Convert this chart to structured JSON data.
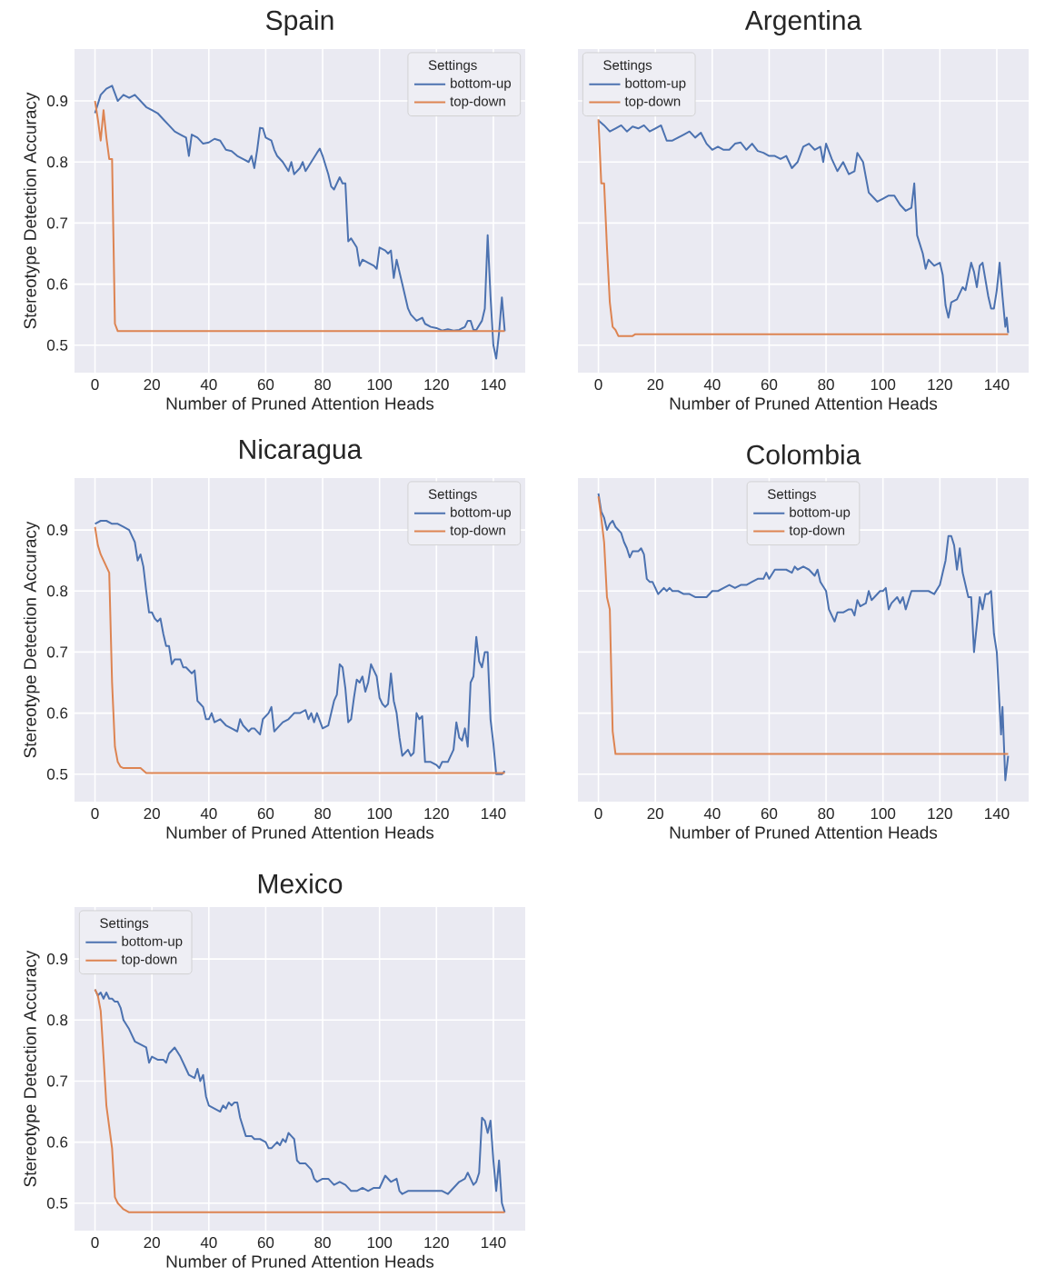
{
  "chart_data": [
    {
      "type": "line",
      "title": "Spain",
      "xlabel": "Number of Pruned Attention Heads",
      "ylabel": "Stereotype Detection Accuracy",
      "legend_title": "Settings",
      "legend": "top right",
      "grid": true,
      "xlim": [
        -7.2,
        151.2
      ],
      "ylim": [
        0.455,
        0.985
      ],
      "xticks": [
        0,
        20,
        40,
        60,
        80,
        100,
        120,
        140
      ],
      "yticks": [
        0.5,
        0.6,
        0.7,
        0.8,
        0.9
      ],
      "series": [
        {
          "name": "bottom-up",
          "color": "#4c72b0",
          "x": [
            0,
            2,
            4,
            6,
            8,
            10,
            12,
            14,
            16,
            18,
            20,
            22,
            24,
            26,
            28,
            30,
            32,
            33,
            34,
            36,
            38,
            40,
            42,
            44,
            46,
            48,
            50,
            52,
            54,
            55,
            56,
            57,
            58,
            59,
            60,
            62,
            63,
            64,
            66,
            68,
            69,
            70,
            72,
            73,
            74,
            76,
            78,
            79,
            80,
            82,
            83,
            84,
            86,
            87,
            88,
            89,
            90,
            92,
            93,
            94,
            96,
            98,
            99,
            100,
            102,
            103,
            104,
            105,
            106,
            107,
            108,
            110,
            111,
            113,
            115,
            116,
            118,
            120,
            122,
            124,
            126,
            128,
            130,
            131,
            132,
            133,
            134,
            136,
            137,
            138,
            139,
            140,
            141,
            142,
            143,
            144
          ],
          "values": [
            0.88,
            0.91,
            0.92,
            0.925,
            0.9,
            0.91,
            0.905,
            0.91,
            0.9,
            0.89,
            0.885,
            0.88,
            0.87,
            0.86,
            0.85,
            0.845,
            0.84,
            0.81,
            0.845,
            0.84,
            0.83,
            0.832,
            0.838,
            0.835,
            0.82,
            0.818,
            0.81,
            0.805,
            0.8,
            0.81,
            0.79,
            0.82,
            0.856,
            0.855,
            0.84,
            0.835,
            0.82,
            0.81,
            0.8,
            0.785,
            0.8,
            0.78,
            0.79,
            0.8,
            0.785,
            0.8,
            0.815,
            0.822,
            0.81,
            0.78,
            0.76,
            0.755,
            0.775,
            0.765,
            0.765,
            0.67,
            0.675,
            0.66,
            0.63,
            0.64,
            0.635,
            0.63,
            0.625,
            0.66,
            0.655,
            0.65,
            0.655,
            0.61,
            0.64,
            0.62,
            0.6,
            0.56,
            0.55,
            0.54,
            0.545,
            0.535,
            0.53,
            0.528,
            0.524,
            0.526,
            0.524,
            0.525,
            0.53,
            0.54,
            0.54,
            0.525,
            0.525,
            0.54,
            0.56,
            0.68,
            0.58,
            0.5,
            0.478,
            0.52,
            0.578,
            0.523
          ]
        },
        {
          "name": "top-down",
          "color": "#dd8452",
          "x": [
            0,
            1,
            2,
            3,
            4,
            5,
            6,
            7,
            8,
            144
          ],
          "values": [
            0.9,
            0.87,
            0.835,
            0.885,
            0.84,
            0.805,
            0.805,
            0.535,
            0.523,
            0.523
          ]
        }
      ]
    },
    {
      "type": "line",
      "title": "Argentina",
      "xlabel": "Number of Pruned Attention Heads",
      "legend_title": "Settings",
      "legend": "top left",
      "grid": true,
      "tick_labels": "x",
      "xlim": [
        -7.2,
        151.2
      ],
      "ylim": [
        0.455,
        0.985
      ],
      "xticks": [
        0,
        20,
        40,
        60,
        80,
        100,
        120,
        140
      ],
      "yticks": [
        0.5,
        0.6,
        0.7,
        0.8,
        0.9
      ],
      "series": [
        {
          "name": "bottom-up",
          "color": "#4c72b0",
          "x": [
            0,
            2,
            4,
            6,
            8,
            10,
            12,
            14,
            16,
            18,
            20,
            22,
            24,
            26,
            28,
            30,
            32,
            34,
            36,
            38,
            40,
            42,
            44,
            46,
            48,
            50,
            52,
            54,
            56,
            58,
            60,
            62,
            64,
            66,
            68,
            70,
            72,
            74,
            76,
            78,
            79,
            80,
            82,
            84,
            86,
            88,
            90,
            91,
            93,
            95,
            97,
            98,
            100,
            102,
            104,
            106,
            108,
            110,
            111,
            112,
            114,
            115,
            116,
            118,
            120,
            121,
            122,
            123,
            124,
            126,
            128,
            129,
            131,
            132,
            133,
            134,
            135,
            137,
            138,
            139,
            140,
            141,
            142,
            143,
            143.5,
            144
          ],
          "values": [
            0.868,
            0.86,
            0.85,
            0.855,
            0.86,
            0.85,
            0.858,
            0.855,
            0.86,
            0.85,
            0.855,
            0.86,
            0.835,
            0.835,
            0.84,
            0.845,
            0.85,
            0.84,
            0.848,
            0.83,
            0.82,
            0.825,
            0.82,
            0.82,
            0.83,
            0.832,
            0.82,
            0.83,
            0.818,
            0.815,
            0.81,
            0.81,
            0.805,
            0.81,
            0.79,
            0.8,
            0.825,
            0.83,
            0.82,
            0.825,
            0.8,
            0.83,
            0.805,
            0.785,
            0.8,
            0.78,
            0.785,
            0.815,
            0.8,
            0.75,
            0.74,
            0.735,
            0.74,
            0.745,
            0.745,
            0.73,
            0.72,
            0.725,
            0.765,
            0.68,
            0.65,
            0.625,
            0.64,
            0.63,
            0.635,
            0.615,
            0.565,
            0.545,
            0.57,
            0.575,
            0.595,
            0.59,
            0.635,
            0.62,
            0.595,
            0.63,
            0.635,
            0.58,
            0.56,
            0.56,
            0.59,
            0.635,
            0.58,
            0.53,
            0.545,
            0.52
          ]
        },
        {
          "name": "top-down",
          "color": "#dd8452",
          "x": [
            0,
            1,
            2,
            3,
            4,
            5,
            6,
            7,
            12,
            13,
            144
          ],
          "values": [
            0.87,
            0.765,
            0.765,
            0.66,
            0.57,
            0.53,
            0.525,
            0.515,
            0.515,
            0.518,
            0.518
          ]
        }
      ]
    },
    {
      "type": "line",
      "title": "Nicaragua",
      "xlabel": "Number of Pruned Attention Heads",
      "ylabel": "Stereotype Detection Accuracy",
      "legend_title": "Settings",
      "legend": "top right",
      "grid": true,
      "xlim": [
        -7.2,
        151.2
      ],
      "ylim": [
        0.455,
        0.985
      ],
      "xticks": [
        0,
        20,
        40,
        60,
        80,
        100,
        120,
        140
      ],
      "yticks": [
        0.5,
        0.6,
        0.7,
        0.8,
        0.9
      ],
      "series": [
        {
          "name": "bottom-up",
          "color": "#4c72b0",
          "x": [
            0,
            2,
            4,
            6,
            8,
            10,
            12,
            14,
            15,
            16,
            17,
            18,
            19,
            20,
            21,
            22,
            23,
            24,
            25,
            26,
            27,
            28,
            30,
            31,
            32,
            34,
            35,
            36,
            37,
            38,
            39,
            40,
            41,
            42,
            44,
            46,
            48,
            50,
            51,
            52,
            54,
            55,
            56,
            58,
            59,
            61,
            62,
            63,
            64,
            66,
            68,
            70,
            72,
            74,
            75,
            76,
            77,
            78,
            80,
            82,
            84,
            85,
            86,
            87,
            88,
            89,
            90,
            91,
            92,
            93,
            94,
            95,
            96,
            97,
            98,
            99,
            100,
            101,
            102,
            103,
            104,
            105,
            106,
            107,
            108,
            109,
            110,
            111,
            112,
            113,
            114,
            115,
            116,
            118,
            120,
            121,
            122,
            124,
            126,
            127,
            128,
            129,
            130,
            131,
            132,
            133,
            134,
            135,
            136,
            137,
            138,
            139,
            140,
            141,
            142,
            143,
            144
          ],
          "values": [
            0.91,
            0.915,
            0.915,
            0.91,
            0.91,
            0.905,
            0.9,
            0.88,
            0.85,
            0.86,
            0.84,
            0.8,
            0.765,
            0.765,
            0.755,
            0.75,
            0.755,
            0.73,
            0.71,
            0.71,
            0.68,
            0.688,
            0.688,
            0.675,
            0.675,
            0.665,
            0.67,
            0.62,
            0.615,
            0.61,
            0.59,
            0.59,
            0.6,
            0.585,
            0.59,
            0.58,
            0.575,
            0.57,
            0.59,
            0.58,
            0.57,
            0.575,
            0.575,
            0.565,
            0.59,
            0.6,
            0.61,
            0.57,
            0.575,
            0.585,
            0.59,
            0.6,
            0.6,
            0.605,
            0.59,
            0.6,
            0.585,
            0.6,
            0.575,
            0.58,
            0.62,
            0.63,
            0.68,
            0.675,
            0.64,
            0.585,
            0.59,
            0.625,
            0.655,
            0.65,
            0.66,
            0.635,
            0.65,
            0.68,
            0.67,
            0.66,
            0.625,
            0.615,
            0.61,
            0.615,
            0.665,
            0.62,
            0.6,
            0.56,
            0.53,
            0.535,
            0.54,
            0.53,
            0.535,
            0.6,
            0.59,
            0.595,
            0.52,
            0.52,
            0.515,
            0.51,
            0.52,
            0.52,
            0.54,
            0.585,
            0.56,
            0.555,
            0.575,
            0.545,
            0.65,
            0.66,
            0.725,
            0.685,
            0.675,
            0.7,
            0.7,
            0.59,
            0.55,
            0.5,
            0.5,
            0.5,
            0.505
          ]
        },
        {
          "name": "top-down",
          "color": "#dd8452",
          "x": [
            0,
            1,
            2,
            3,
            4,
            5,
            6,
            7,
            8,
            9,
            10,
            16,
            18,
            144
          ],
          "values": [
            0.905,
            0.875,
            0.86,
            0.85,
            0.84,
            0.83,
            0.65,
            0.545,
            0.52,
            0.512,
            0.51,
            0.51,
            0.502,
            0.502
          ]
        }
      ]
    },
    {
      "type": "line",
      "title": "Colombia",
      "xlabel": "Number of Pruned Attention Heads",
      "legend_title": "Settings",
      "legend": "top",
      "grid": true,
      "tick_labels": "x",
      "xlim": [
        -7.2,
        151.2
      ],
      "ylim": [
        0.455,
        0.985
      ],
      "xticks": [
        0,
        20,
        40,
        60,
        80,
        100,
        120,
        140
      ],
      "yticks": [
        0.5,
        0.6,
        0.7,
        0.8,
        0.9
      ],
      "series": [
        {
          "name": "bottom-up",
          "color": "#4c72b0",
          "x": [
            0,
            1,
            2,
            3,
            4,
            5,
            6,
            8,
            9,
            10,
            11,
            12,
            14,
            15,
            16,
            17,
            18,
            19,
            20,
            21,
            22,
            23,
            24,
            25,
            26,
            28,
            30,
            32,
            34,
            36,
            38,
            40,
            42,
            44,
            46,
            48,
            50,
            52,
            54,
            56,
            58,
            59,
            60,
            62,
            64,
            66,
            68,
            69,
            70,
            72,
            74,
            76,
            77,
            78,
            80,
            81,
            82,
            83,
            84,
            86,
            88,
            89,
            90,
            91,
            92,
            94,
            95,
            96,
            97,
            99,
            100,
            101,
            102,
            103,
            105,
            106,
            107,
            108,
            110,
            112,
            114,
            116,
            118,
            120,
            121,
            122,
            123,
            124,
            125,
            126,
            127,
            128,
            129,
            130,
            131,
            132,
            133,
            134,
            135,
            136,
            137,
            138,
            139,
            140,
            141,
            141.5,
            142,
            143,
            144
          ],
          "values": [
            0.96,
            0.93,
            0.92,
            0.9,
            0.91,
            0.915,
            0.905,
            0.895,
            0.88,
            0.87,
            0.855,
            0.865,
            0.865,
            0.87,
            0.86,
            0.82,
            0.815,
            0.815,
            0.805,
            0.795,
            0.8,
            0.805,
            0.8,
            0.805,
            0.8,
            0.8,
            0.795,
            0.795,
            0.79,
            0.79,
            0.79,
            0.8,
            0.8,
            0.805,
            0.81,
            0.805,
            0.81,
            0.81,
            0.815,
            0.82,
            0.82,
            0.83,
            0.82,
            0.835,
            0.835,
            0.835,
            0.83,
            0.84,
            0.835,
            0.84,
            0.835,
            0.825,
            0.835,
            0.815,
            0.8,
            0.77,
            0.76,
            0.75,
            0.765,
            0.765,
            0.77,
            0.77,
            0.76,
            0.785,
            0.775,
            0.78,
            0.8,
            0.785,
            0.79,
            0.8,
            0.8,
            0.805,
            0.77,
            0.78,
            0.79,
            0.78,
            0.79,
            0.77,
            0.8,
            0.8,
            0.8,
            0.8,
            0.795,
            0.81,
            0.83,
            0.85,
            0.89,
            0.89,
            0.875,
            0.835,
            0.87,
            0.83,
            0.81,
            0.79,
            0.79,
            0.7,
            0.745,
            0.79,
            0.77,
            0.795,
            0.795,
            0.8,
            0.73,
            0.7,
            0.61,
            0.565,
            0.61,
            0.49,
            0.53
          ]
        },
        {
          "name": "top-down",
          "color": "#dd8452",
          "x": [
            0,
            1,
            2,
            3,
            4,
            5,
            6,
            144
          ],
          "values": [
            0.955,
            0.92,
            0.88,
            0.79,
            0.77,
            0.57,
            0.533,
            0.533
          ]
        }
      ]
    },
    {
      "type": "line",
      "title": "Mexico",
      "xlabel": "Number of Pruned Attention Heads",
      "ylabel": "Stereotype Detection Accuracy",
      "legend_title": "Settings",
      "legend": "top left",
      "grid": true,
      "xlim": [
        -7.2,
        151.2
      ],
      "ylim": [
        0.455,
        0.985
      ],
      "xticks": [
        0,
        20,
        40,
        60,
        80,
        100,
        120,
        140
      ],
      "yticks": [
        0.5,
        0.6,
        0.7,
        0.8,
        0.9
      ],
      "series": [
        {
          "name": "bottom-up",
          "color": "#4c72b0",
          "x": [
            0,
            1,
            2,
            3,
            4,
            5,
            6,
            7,
            8,
            9,
            10,
            12,
            14,
            16,
            18,
            19,
            20,
            22,
            24,
            25,
            26,
            28,
            30,
            32,
            33,
            35,
            36,
            37,
            38,
            39,
            40,
            42,
            44,
            45,
            46,
            47,
            48,
            49,
            50,
            51,
            52,
            53,
            55,
            56,
            58,
            60,
            61,
            62,
            64,
            65,
            66,
            67,
            68,
            69,
            70,
            71,
            72,
            74,
            76,
            77,
            78,
            80,
            82,
            84,
            86,
            88,
            90,
            92,
            94,
            96,
            98,
            100,
            101,
            102,
            104,
            106,
            107,
            108,
            110,
            112,
            114,
            116,
            118,
            120,
            122,
            124,
            126,
            128,
            130,
            131,
            132,
            133,
            134,
            135,
            136,
            137,
            138,
            139,
            140,
            141,
            142,
            143,
            144
          ],
          "values": [
            0.85,
            0.84,
            0.845,
            0.835,
            0.845,
            0.835,
            0.835,
            0.83,
            0.83,
            0.82,
            0.8,
            0.785,
            0.765,
            0.76,
            0.755,
            0.73,
            0.74,
            0.735,
            0.735,
            0.73,
            0.745,
            0.755,
            0.74,
            0.72,
            0.71,
            0.705,
            0.72,
            0.7,
            0.71,
            0.675,
            0.66,
            0.655,
            0.65,
            0.66,
            0.655,
            0.665,
            0.66,
            0.665,
            0.665,
            0.64,
            0.625,
            0.61,
            0.61,
            0.605,
            0.605,
            0.6,
            0.59,
            0.59,
            0.6,
            0.595,
            0.605,
            0.6,
            0.615,
            0.61,
            0.605,
            0.57,
            0.565,
            0.565,
            0.555,
            0.54,
            0.535,
            0.54,
            0.54,
            0.53,
            0.535,
            0.53,
            0.52,
            0.52,
            0.525,
            0.52,
            0.525,
            0.525,
            0.535,
            0.545,
            0.535,
            0.54,
            0.52,
            0.515,
            0.52,
            0.52,
            0.52,
            0.52,
            0.52,
            0.52,
            0.52,
            0.515,
            0.525,
            0.535,
            0.54,
            0.55,
            0.54,
            0.53,
            0.535,
            0.55,
            0.64,
            0.635,
            0.615,
            0.635,
            0.57,
            0.52,
            0.57,
            0.5,
            0.485
          ]
        },
        {
          "name": "top-down",
          "color": "#dd8452",
          "x": [
            0,
            1,
            2,
            3,
            4,
            5,
            6,
            7,
            8,
            9,
            10,
            12,
            144
          ],
          "values": [
            0.85,
            0.84,
            0.815,
            0.74,
            0.66,
            0.625,
            0.59,
            0.51,
            0.5,
            0.495,
            0.49,
            0.485,
            0.485
          ]
        }
      ]
    }
  ]
}
